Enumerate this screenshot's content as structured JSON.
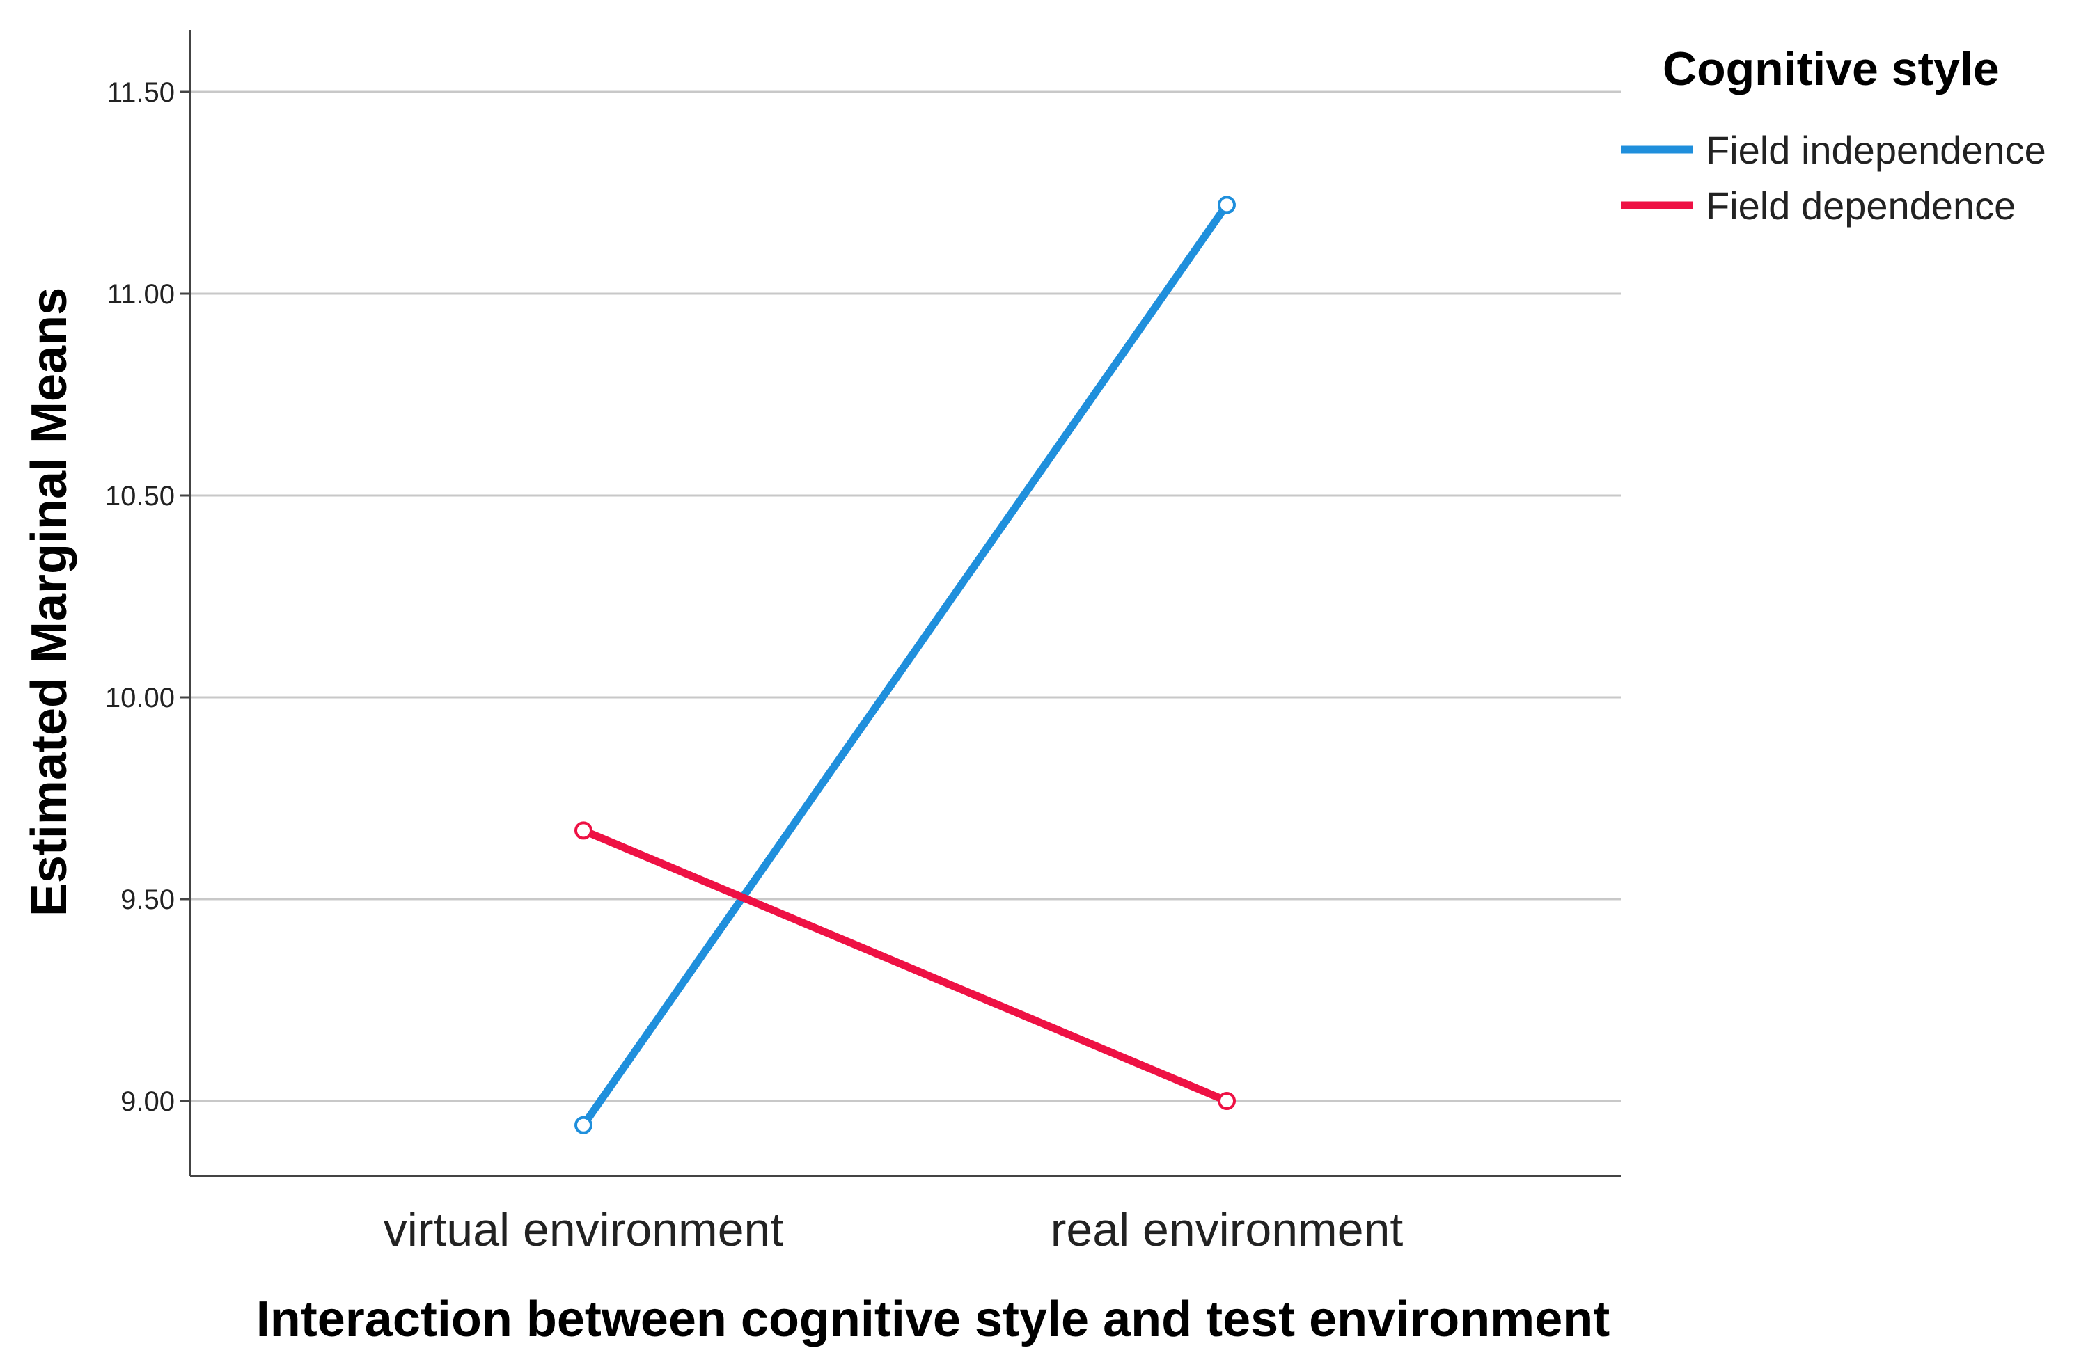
{
  "chart_data": {
    "type": "line",
    "title": "",
    "xlabel": "Interaction between cognitive style and test environment",
    "ylabel": "Estimated Marginal Means",
    "categories": [
      "virtual environment",
      "real environment"
    ],
    "ylim": [
      8.8,
      11.65
    ],
    "yticks": [
      9.0,
      9.5,
      10.0,
      10.5,
      11.0,
      11.5
    ],
    "ytick_labels": [
      "9.00",
      "9.50",
      "10.00",
      "10.50",
      "11.00",
      "11.50"
    ],
    "grid": "horizontal",
    "legend": {
      "title": "Cognitive style",
      "position": "top-right"
    },
    "series": [
      {
        "name": "Field independence",
        "values": [
          8.94,
          11.22
        ],
        "color": "#1f8fdc"
      },
      {
        "name": "Field dependence",
        "values": [
          9.67,
          9.0
        ],
        "color": "#ee1144"
      }
    ]
  }
}
